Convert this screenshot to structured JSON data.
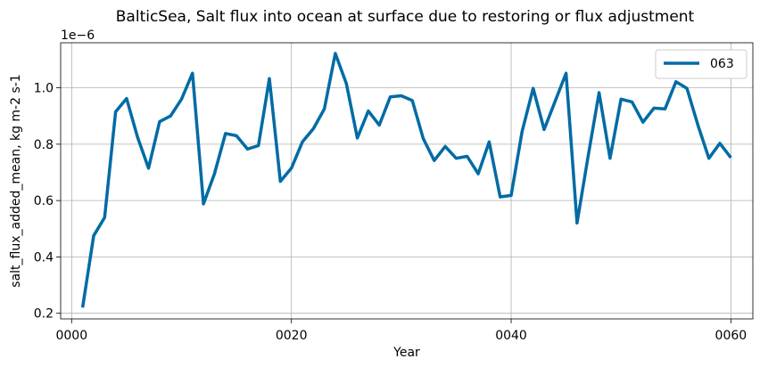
{
  "chart_data": {
    "type": "line",
    "title": "BalticSea, Salt flux into ocean at surface due to restoring or flux adjustment",
    "xlabel": "Year",
    "ylabel": "salt_flux_added_mean, kg m-2 s-1",
    "y_offset_label": "1e−6",
    "xlim": [
      -1,
      62
    ],
    "ylim": [
      0.18,
      1.16
    ],
    "x_ticks": [
      0,
      20,
      40,
      60
    ],
    "x_tick_labels": [
      "0000",
      "0020",
      "0040",
      "0060"
    ],
    "y_ticks": [
      0.2,
      0.4,
      0.6,
      0.8,
      1.0
    ],
    "y_tick_labels": [
      "0.2",
      "0.4",
      "0.6",
      "0.8",
      "1.0"
    ],
    "grid": true,
    "legend_position": "top-right",
    "series": [
      {
        "name": "063",
        "color": "#006ba4",
        "x": [
          1,
          2,
          3,
          4,
          5,
          6,
          7,
          8,
          9,
          10,
          11,
          12,
          13,
          14,
          15,
          16,
          17,
          18,
          19,
          20,
          21,
          22,
          23,
          24,
          25,
          26,
          27,
          28,
          29,
          30,
          31,
          32,
          33,
          34,
          35,
          36,
          37,
          38,
          39,
          40,
          41,
          42,
          43,
          44,
          45,
          46,
          47,
          48,
          49,
          50,
          51,
          52,
          53,
          54,
          55,
          56,
          57,
          58,
          59,
          60
        ],
        "values": [
          0.22,
          0.475,
          0.54,
          0.915,
          0.962,
          0.825,
          0.715,
          0.88,
          0.9,
          0.96,
          1.052,
          0.588,
          0.695,
          0.838,
          0.83,
          0.783,
          0.795,
          1.033,
          0.668,
          0.715,
          0.808,
          0.855,
          0.925,
          1.122,
          1.015,
          0.822,
          0.918,
          0.868,
          0.968,
          0.972,
          0.955,
          0.82,
          0.742,
          0.792,
          0.75,
          0.757,
          0.695,
          0.808,
          0.613,
          0.618,
          0.845,
          0.998,
          0.852,
          0.952,
          1.052,
          0.52,
          0.755,
          0.983,
          0.75,
          0.96,
          0.95,
          0.878,
          0.928,
          0.925,
          1.022,
          0.998,
          0.868,
          0.75,
          0.803,
          0.752
        ]
      }
    ]
  }
}
